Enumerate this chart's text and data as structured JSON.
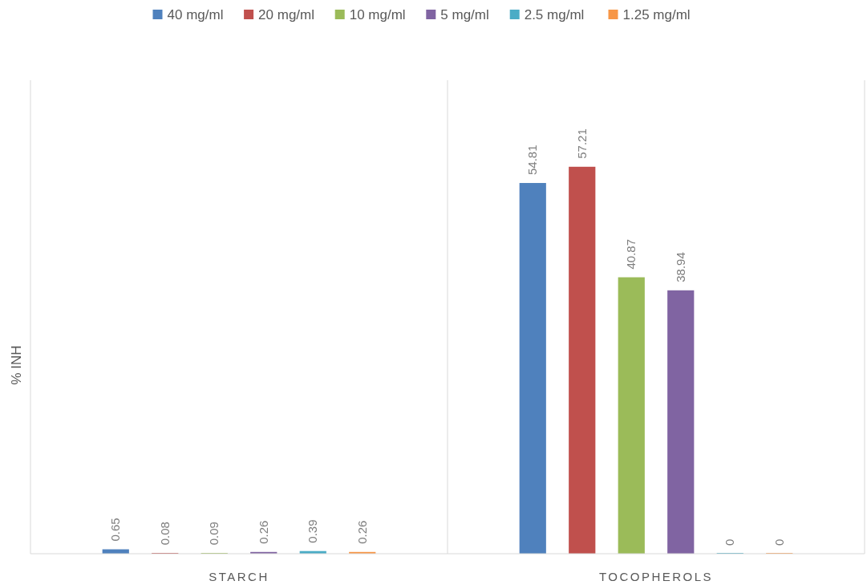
{
  "chart_data": {
    "type": "bar",
    "ylabel": "% INH",
    "categories": [
      "STARCH",
      "TOCOPHEROLS"
    ],
    "ylim": [
      0,
      70
    ],
    "data_labels": true,
    "legend": "top",
    "series": [
      {
        "name": "40 mg/ml",
        "color": "#4f81bd",
        "values": [
          0.65,
          54.81
        ]
      },
      {
        "name": "20 mg/ml",
        "color": "#c0504d",
        "values": [
          0.08,
          57.21
        ]
      },
      {
        "name": "10 mg/ml",
        "color": "#9bbb59",
        "values": [
          0.09,
          40.87
        ]
      },
      {
        "name": "5 mg/ml",
        "color": "#8064a2",
        "values": [
          0.26,
          38.94
        ]
      },
      {
        "name": "2.5 mg/ml",
        "color": "#4bacc6",
        "values": [
          0.39,
          0
        ]
      },
      {
        "name": "1.25 mg/ml",
        "color": "#f79646",
        "values": [
          0.26,
          0
        ]
      }
    ]
  }
}
